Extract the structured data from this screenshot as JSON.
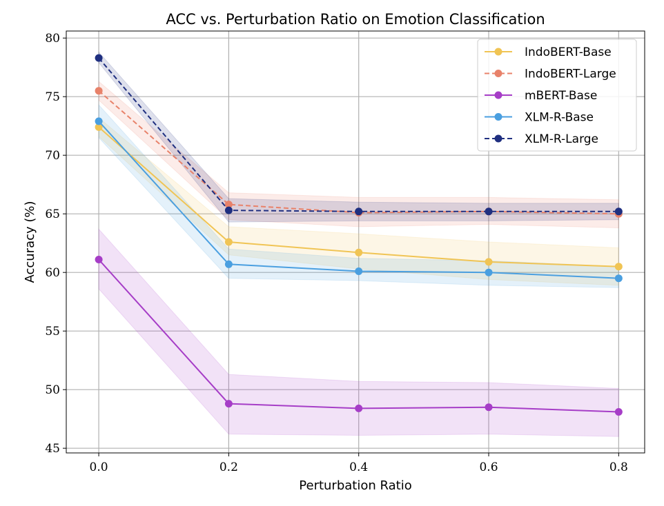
{
  "chart_data": {
    "type": "line",
    "title": "ACC vs. Perturbation Ratio on Emotion Classification",
    "xlabel": "Perturbation Ratio",
    "ylabel": "Accuracy (%)",
    "x": [
      0.0,
      0.2,
      0.4,
      0.6,
      0.8
    ],
    "x_tick_labels": [
      "0.0",
      "0.2",
      "0.4",
      "0.6",
      "0.8"
    ],
    "y_ticks": [
      45,
      50,
      55,
      60,
      65,
      70,
      75,
      80
    ],
    "xlim": [
      -0.05,
      0.84
    ],
    "ylim": [
      44.6,
      80.6
    ],
    "grid": true,
    "legend_position": "top-right",
    "series": [
      {
        "name": "IndoBERT-Base",
        "color": "#F0C454",
        "dashed": false,
        "values": [
          72.4,
          62.6,
          61.7,
          60.9,
          60.5
        ],
        "lower": [
          71.6,
          61.5,
          60.3,
          59.4,
          58.9
        ],
        "upper": [
          73.2,
          63.9,
          63.3,
          62.6,
          62.1
        ]
      },
      {
        "name": "IndoBERT-Large",
        "color": "#E8826A",
        "dashed": true,
        "values": [
          75.5,
          65.8,
          65.1,
          65.2,
          65.0
        ],
        "lower": [
          74.7,
          64.5,
          63.9,
          64.1,
          63.8
        ],
        "upper": [
          76.3,
          66.8,
          66.4,
          66.4,
          66.2
        ]
      },
      {
        "name": "mBERT-Base",
        "color": "#A63DC7",
        "dashed": false,
        "values": [
          61.1,
          48.8,
          48.4,
          48.5,
          48.1
        ],
        "lower": [
          58.6,
          46.2,
          46.1,
          46.2,
          46.0
        ],
        "upper": [
          63.7,
          51.3,
          50.7,
          50.6,
          50.1
        ]
      },
      {
        "name": "XLM-R-Base",
        "color": "#4A9FE0",
        "dashed": false,
        "values": [
          72.9,
          60.7,
          60.1,
          60.0,
          59.5
        ],
        "lower": [
          71.5,
          59.5,
          59.3,
          58.9,
          58.7
        ],
        "upper": [
          74.3,
          62.0,
          61.2,
          61.0,
          60.5
        ]
      },
      {
        "name": "XLM-R-Large",
        "color": "#1F2F80",
        "dashed": true,
        "values": [
          78.3,
          65.3,
          65.2,
          65.2,
          65.2
        ],
        "lower": [
          77.9,
          64.3,
          64.4,
          64.4,
          64.5
        ],
        "upper": [
          78.8,
          66.3,
          66.0,
          65.9,
          65.9
        ]
      }
    ]
  }
}
